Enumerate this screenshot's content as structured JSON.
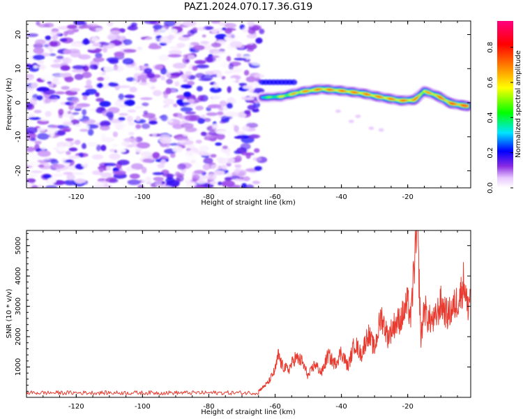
{
  "figure": {
    "title": "PAZ1.2024.070.17.36.G19"
  },
  "chart_data": [
    {
      "type": "heatmap",
      "xlabel": "Height of straight line (km)",
      "ylabel": "Frequency (Hz)",
      "xlim": [
        -135,
        -1
      ],
      "ylim": [
        -25,
        24
      ],
      "xticks": [
        -120,
        -100,
        -80,
        -60,
        -40,
        -20
      ],
      "yticks": [
        -20,
        -10,
        0,
        10,
        20
      ],
      "colorbar": {
        "label": "Normalized spectral amplitude",
        "range": [
          0.0,
          0.95
        ],
        "ticks": [
          0.0,
          0.2,
          0.4,
          0.6,
          0.8
        ],
        "colors": [
          "#ffffff",
          "#e8c8ff",
          "#8a2be2",
          "#0000ff",
          "#00e5ff",
          "#00ff00",
          "#ffff00",
          "#ff8000",
          "#ff0000",
          "#ff007f"
        ]
      },
      "noise_region_x": [
        -135,
        -64
      ],
      "noise_amplitude_range": [
        0.0,
        0.2
      ],
      "ridge": {
        "description_points": [
          {
            "x": -64,
            "y": 1.5,
            "amp": 0.45
          },
          {
            "x": -58,
            "y": 1.8,
            "amp": 0.6
          },
          {
            "x": -52,
            "y": 3.2,
            "amp": 0.75
          },
          {
            "x": -46,
            "y": 4.0,
            "amp": 0.8
          },
          {
            "x": -40,
            "y": 3.5,
            "amp": 0.8
          },
          {
            "x": -34,
            "y": 2.8,
            "amp": 0.8
          },
          {
            "x": -28,
            "y": 1.6,
            "amp": 0.8
          },
          {
            "x": -22,
            "y": 0.6,
            "amp": 0.8
          },
          {
            "x": -18,
            "y": 0.8,
            "amp": 0.8
          },
          {
            "x": -15,
            "y": 3.4,
            "amp": 0.7
          },
          {
            "x": -11,
            "y": 2.0,
            "amp": 0.8
          },
          {
            "x": -7,
            "y": -0.2,
            "amp": 0.85
          },
          {
            "x": -2,
            "y": -1.0,
            "amp": 0.9
          }
        ],
        "secondary_band": {
          "x": [
            -64,
            -54
          ],
          "y": 6.0,
          "amp": 0.2
        }
      }
    },
    {
      "type": "line",
      "xlabel": "Height of straight line (km)",
      "ylabel": "SNR (10 * v/v)",
      "xlim": [
        -135,
        -1
      ],
      "ylim": [
        0,
        5500
      ],
      "xticks": [
        -120,
        -100,
        -80,
        -60,
        -40,
        -20
      ],
      "yticks": [
        1000,
        2000,
        3000,
        4000,
        5000
      ],
      "color": "#e83a2e",
      "x": [
        -135,
        -110,
        -90,
        -70,
        -66,
        -64,
        -62,
        -60,
        -59,
        -58,
        -56,
        -54,
        -52,
        -50,
        -48,
        -46,
        -44,
        -42,
        -40,
        -38,
        -36,
        -34,
        -32,
        -30,
        -28,
        -26,
        -24,
        -22,
        -20,
        -19,
        -18,
        -17,
        -16,
        -15,
        -14,
        -12,
        -10,
        -8,
        -6,
        -4,
        -3,
        -2,
        -1
      ],
      "y": [
        130,
        135,
        130,
        130,
        140,
        300,
        500,
        900,
        1400,
        1050,
        900,
        1300,
        1200,
        700,
        1100,
        800,
        1400,
        1100,
        1500,
        1000,
        1800,
        1400,
        2100,
        1600,
        2700,
        2000,
        2400,
        2600,
        3100,
        2600,
        4500,
        5400,
        1900,
        3000,
        2600,
        2500,
        3100,
        2700,
        3000,
        3400,
        3900,
        2900,
        3500
      ],
      "noise_region_x": [
        -135,
        -65
      ],
      "noise_level": [
        80,
        220
      ]
    }
  ]
}
